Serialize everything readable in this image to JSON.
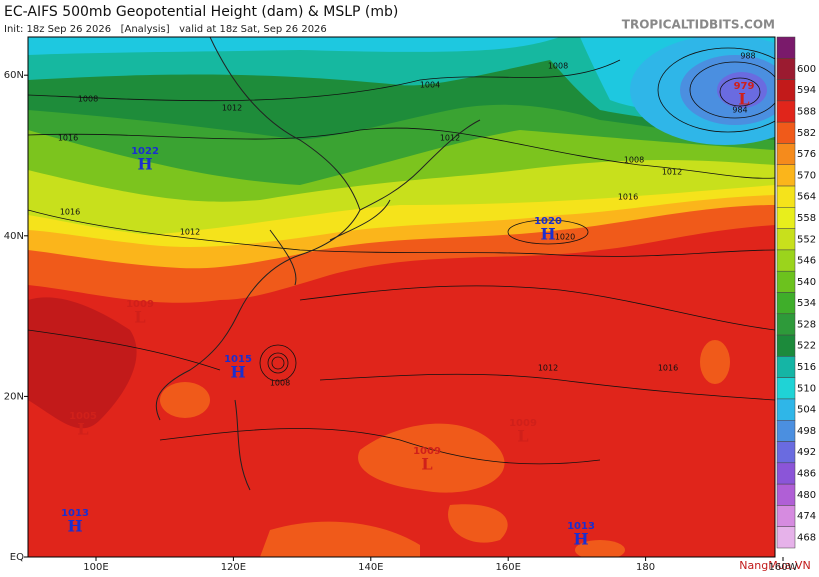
{
  "header": {
    "title": "EC-AIFS 500mb Geopotential Height (dam) & MSLP (mb)",
    "subtitle": "Init: 18z Sep 26 2026   [Analysis]   valid at 18z Sat, Sep 26 2026",
    "site": "TROPICALTIDBITS.COM",
    "watermark": "NangMua.VN"
  },
  "map": {
    "lat_ticks": [
      {
        "value": 60,
        "label": "60N"
      },
      {
        "value": 40,
        "label": "40N"
      },
      {
        "value": 20,
        "label": "20N"
      },
      {
        "value": 0,
        "label": "EQ"
      }
    ],
    "lon_ticks": [
      {
        "value": 100,
        "label": "100E"
      },
      {
        "value": 120,
        "label": "120E"
      },
      {
        "value": 140,
        "label": "140E"
      },
      {
        "value": 160,
        "label": "160E"
      },
      180,
      {
        "value": -160,
        "label": "160W"
      }
    ],
    "centers": [
      {
        "kind": "H",
        "pressure": 1022
      },
      {
        "kind": "H",
        "pressure": 1020
      },
      {
        "kind": "H",
        "pressure": 1015
      },
      {
        "kind": "L",
        "pressure": 979
      },
      {
        "kind": "L",
        "pressure": 1009
      },
      {
        "kind": "L",
        "pressure": 1009
      },
      {
        "kind": "L",
        "pressure": 1005
      },
      {
        "kind": "H",
        "pressure": 1013
      },
      {
        "kind": "H",
        "pressure": 1013
      },
      {
        "kind": "L",
        "pressure": 1009
      }
    ],
    "isobar_labels": [
      1008,
      1016,
      1012,
      1004,
      1008,
      1016,
      1012,
      1012,
      1016,
      1012,
      1008,
      1012,
      1016,
      988,
      984,
      1020,
      1008
    ]
  },
  "colorbar": {
    "levels": [
      600,
      594,
      588,
      582,
      576,
      570,
      564,
      558,
      552,
      546,
      540,
      534,
      528,
      522,
      516,
      510,
      504,
      498,
      492,
      486,
      480,
      474,
      468
    ],
    "colors": [
      "#7a1a6b",
      "#9b1b30",
      "#c21a1a",
      "#e0251b",
      "#f05a1a",
      "#f58b1c",
      "#fbb51b",
      "#f5e31b",
      "#e8ee1c",
      "#c8e01c",
      "#9bd41c",
      "#6cc21e",
      "#3fae2a",
      "#2e9a3a",
      "#1c8a3b",
      "#15b5a5",
      "#1fd3d6",
      "#2fb6e8",
      "#4b8fe0",
      "#6a6be0",
      "#8b55d8",
      "#b05fd6",
      "#d68be0",
      "#e6b2ea"
    ]
  }
}
